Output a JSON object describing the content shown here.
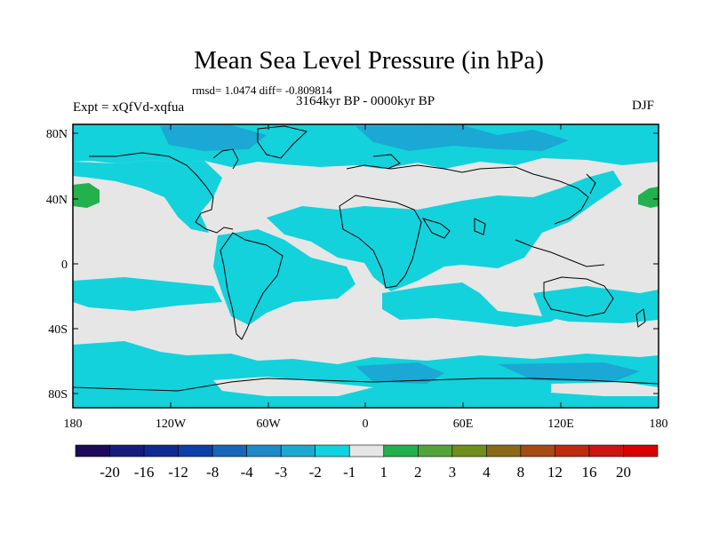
{
  "title": "Mean Sea Level Pressure (in hPa)",
  "stats": "rmsd= 1.0474 diff= -0.809814",
  "period": "3164kyr BP - 0000kyr BP",
  "experiment": "Expt = xQfVd-xqfua",
  "season": "DJF",
  "lat_labels": [
    "80N",
    "40N",
    "0",
    "40S",
    "80S"
  ],
  "lon_labels": [
    "180",
    "120W",
    "60W",
    "0",
    "60E",
    "120E",
    "180"
  ],
  "colorbar": {
    "levels": [
      "-20",
      "-16",
      "-12",
      "-8",
      "-4",
      "-3",
      "-2",
      "-1",
      "1",
      "2",
      "3",
      "4",
      "8",
      "12",
      "16",
      "20"
    ],
    "colors": [
      "#1e0a5a",
      "#161c7c",
      "#0f2b93",
      "#0c3fa8",
      "#1766b8",
      "#1f8ac8",
      "#1ba9d2",
      "#0fd4df",
      "#e6e6e6",
      "#22b14c",
      "#52a43a",
      "#6f8e1a",
      "#8a6a18",
      "#a64a14",
      "#c02a0e",
      "#cf1212",
      "#dc0000"
    ]
  },
  "colors": {
    "land_outline": "#000000",
    "neutral": "#e6e6e6",
    "light_negative": "#13d2dc",
    "moderate_negative": "#1ba8d4",
    "positive": "#22b14c"
  }
}
